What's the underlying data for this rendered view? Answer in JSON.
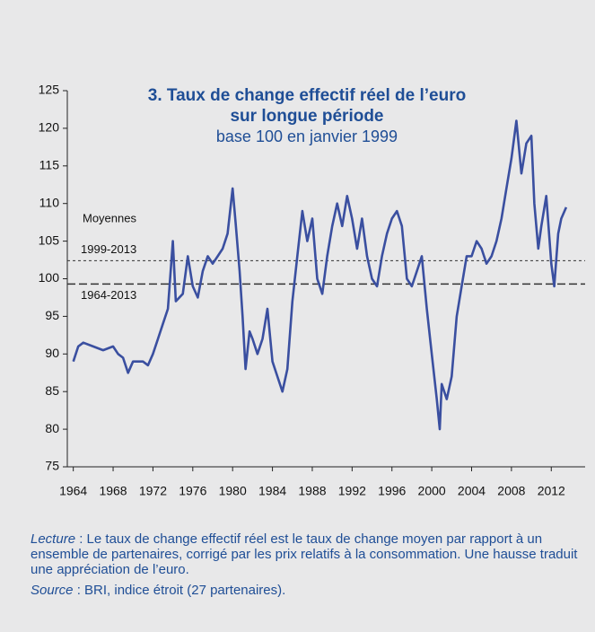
{
  "chart_data": {
    "type": "line",
    "title": "3. Taux de change effectif réel de l’euro",
    "title2": "sur longue période",
    "subtitle": "base 100 en janvier 1999",
    "x": [
      1964.0,
      1964.5,
      1965,
      1966,
      1967,
      1968,
      1968.5,
      1969,
      1969.5,
      1970,
      1971,
      1971.5,
      1972,
      1972.5,
      1973,
      1973.5,
      1974,
      1974.3,
      1975,
      1975.5,
      1976,
      1976.5,
      1977,
      1977.5,
      1978,
      1978.5,
      1979,
      1979.5,
      1980,
      1980.3,
      1980.7,
      1981,
      1981.3,
      1981.7,
      1982,
      1982.5,
      1983,
      1983.5,
      1984,
      1984.5,
      1985,
      1985.5,
      1986,
      1986.5,
      1987,
      1987.5,
      1988,
      1988.5,
      1989,
      1989.5,
      1990,
      1990.5,
      1991,
      1991.5,
      1992,
      1992.5,
      1993,
      1993.5,
      1994,
      1994.5,
      1995,
      1995.5,
      1996,
      1996.5,
      1997,
      1997.5,
      1998,
      1998.5,
      1999,
      1999.5,
      2000,
      2000.5,
      2000.8,
      2001,
      2001.5,
      2002,
      2002.5,
      2003,
      2003.5,
      2004,
      2004.5,
      2005,
      2005.5,
      2006,
      2006.5,
      2007,
      2007.5,
      2008,
      2008.5,
      2009,
      2009.5,
      2010,
      2010.3,
      2010.7,
      2011,
      2011.5,
      2012,
      2012.3,
      2012.7,
      2013,
      2013.5
    ],
    "series": [
      {
        "name": "Taux de change effectif réel",
        "color": "#3a4fa0",
        "values": [
          89,
          91,
          91.5,
          91,
          90.5,
          91,
          90,
          89.5,
          87.5,
          89,
          89,
          88.5,
          90,
          92,
          94,
          96,
          105,
          97,
          98,
          103,
          99,
          97.5,
          101,
          103,
          102,
          103,
          104,
          106,
          112,
          107.5,
          101,
          95,
          88,
          93,
          92,
          90,
          92,
          96,
          89,
          87,
          85,
          88,
          97,
          103,
          109,
          105,
          108,
          100,
          98,
          103,
          107,
          110,
          107,
          111,
          108,
          104,
          108,
          103,
          100,
          99,
          103,
          106,
          108,
          109,
          107,
          100,
          99,
          101,
          103,
          96,
          90,
          84,
          80,
          86,
          84,
          87,
          95,
          99,
          103,
          103,
          105,
          104,
          102,
          103,
          105,
          108,
          112,
          116,
          121,
          114,
          118,
          119,
          110,
          104,
          107,
          111,
          102,
          99,
          106,
          108,
          109.5
        ]
      }
    ],
    "xlim": [
      1963.4,
      2015.4
    ],
    "xticks": [
      1964,
      1968,
      1972,
      1976,
      1980,
      1984,
      1988,
      1992,
      1996,
      2000,
      2004,
      2008,
      2012
    ],
    "ylim": [
      75,
      125
    ],
    "yticks": [
      75,
      80,
      85,
      90,
      95,
      100,
      105,
      110,
      115,
      120,
      125
    ],
    "averages_label": "Moyennes",
    "averages": [
      {
        "label": "1999-2013",
        "value": 102.4
      },
      {
        "label": "1964-2013",
        "value": 99.3
      }
    ],
    "note": {
      "lead": "Lecture",
      "text": " : Le taux de change effectif réel est le taux de change moyen par rapport à un ensemble de partenaires, corrigé par les prix relatifs à la consommation. Une hausse traduit une appréciation de l’euro.",
      "source_lead": "Source",
      "source": " : BRI, indice étroit (27 partenaires)."
    }
  }
}
